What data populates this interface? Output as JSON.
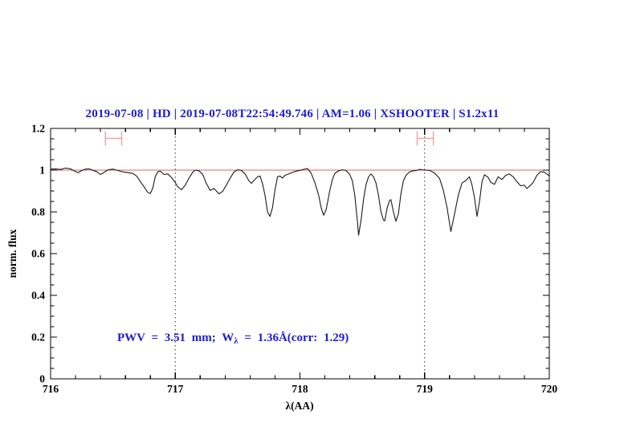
{
  "header": {
    "title": "2019-07-08 | HD | 2019-07-08T22:54:49.746 | AM=1.06 | XSHOOTER | S1.2x11",
    "color": "#1c1cd6"
  },
  "annotation": {
    "part1": "PWV = 3.51 mm; W",
    "lambda_sub": "λ",
    "part2": " = 1.36Å(corr: 1.29)",
    "color": "#1c1cd6"
  },
  "chart_data": {
    "type": "line",
    "title": "2019-07-08 | HD | 2019-07-08T22:54:49.746 | AM=1.06 | XSHOOTER | S1.2x11",
    "xlabel": "λ(AA)",
    "ylabel": "norm. flux",
    "xlim": [
      716,
      720
    ],
    "ylim": [
      0,
      1.2
    ],
    "grid": false,
    "x_tick_labels": [
      "716",
      "717",
      "718",
      "719",
      "720"
    ],
    "x_major_ticks": [
      716,
      717,
      718,
      719,
      720
    ],
    "x_minor_step": 0.2,
    "y_tick_labels": [
      "0",
      "0.2",
      "0.4",
      "0.6",
      "0.8",
      "1",
      "1.2"
    ],
    "y_major_ticks": [
      0,
      0.2,
      0.4,
      0.6,
      0.8,
      1.0,
      1.2
    ],
    "y_minor_step": 0.05,
    "reference_line": {
      "y": 1.0,
      "color": "#e85f5f"
    },
    "dotted_vlines": {
      "x": [
        717,
        719
      ],
      "color": "#3c3c3c"
    },
    "interval_markers": {
      "color": "#f2a0a0",
      "y": 1.152,
      "cap_half_height": 0.034,
      "items": [
        {
          "center": 716.505,
          "half_width": 0.065
        },
        {
          "center": 719.005,
          "half_width": 0.065
        }
      ]
    },
    "series": [
      {
        "name": "normalized-spectrum",
        "color": "#1a1a1a",
        "points": [
          [
            716.0,
            1.005
          ],
          [
            716.04,
            1.006
          ],
          [
            716.08,
            1.003
          ],
          [
            716.12,
            1.01
          ],
          [
            716.16,
            1.006
          ],
          [
            716.19,
            0.996
          ],
          [
            716.22,
            0.988
          ],
          [
            716.25,
            0.998
          ],
          [
            716.28,
            1.005
          ],
          [
            716.31,
            1.006
          ],
          [
            716.34,
            0.999
          ],
          [
            716.37,
            0.993
          ],
          [
            716.4,
            0.979
          ],
          [
            716.43,
            0.99
          ],
          [
            716.46,
            1.001
          ],
          [
            716.5,
            1.005
          ],
          [
            716.54,
            0.998
          ],
          [
            716.58,
            0.992
          ],
          [
            716.62,
            0.988
          ],
          [
            716.66,
            0.984
          ],
          [
            716.69,
            0.972
          ],
          [
            716.72,
            0.945
          ],
          [
            716.75,
            0.92
          ],
          [
            716.78,
            0.893
          ],
          [
            716.8,
            0.888
          ],
          [
            716.82,
            0.915
          ],
          [
            716.84,
            0.97
          ],
          [
            716.86,
            0.992
          ],
          [
            716.88,
            0.995
          ],
          [
            716.91,
            0.979
          ],
          [
            716.94,
            0.982
          ],
          [
            716.97,
            0.965
          ],
          [
            717.0,
            0.94
          ],
          [
            717.02,
            0.92
          ],
          [
            717.05,
            0.906
          ],
          [
            717.08,
            0.928
          ],
          [
            717.11,
            0.962
          ],
          [
            717.14,
            0.99
          ],
          [
            717.16,
            1.0
          ],
          [
            717.19,
            0.997
          ],
          [
            717.22,
            0.98
          ],
          [
            717.25,
            0.935
          ],
          [
            717.28,
            0.903
          ],
          [
            717.31,
            0.912
          ],
          [
            717.33,
            0.9
          ],
          [
            717.35,
            0.886
          ],
          [
            717.38,
            0.898
          ],
          [
            717.41,
            0.928
          ],
          [
            717.44,
            0.962
          ],
          [
            717.47,
            0.99
          ],
          [
            717.5,
            1.002
          ],
          [
            717.53,
            0.999
          ],
          [
            717.56,
            0.982
          ],
          [
            717.59,
            0.95
          ],
          [
            717.61,
            0.937
          ],
          [
            717.63,
            0.95
          ],
          [
            717.66,
            0.968
          ],
          [
            717.68,
            0.972
          ],
          [
            717.7,
            0.935
          ],
          [
            717.72,
            0.88
          ],
          [
            717.74,
            0.8
          ],
          [
            717.76,
            0.778
          ],
          [
            717.78,
            0.82
          ],
          [
            717.8,
            0.905
          ],
          [
            717.82,
            0.968
          ],
          [
            717.84,
            0.972
          ],
          [
            717.86,
            0.962
          ],
          [
            717.88,
            0.975
          ],
          [
            717.91,
            0.982
          ],
          [
            717.94,
            0.99
          ],
          [
            717.97,
            0.995
          ],
          [
            718.0,
            0.999
          ],
          [
            718.03,
            1.004
          ],
          [
            718.06,
            1.008
          ],
          [
            718.09,
            0.985
          ],
          [
            718.12,
            0.94
          ],
          [
            718.15,
            0.88
          ],
          [
            718.17,
            0.82
          ],
          [
            718.19,
            0.784
          ],
          [
            718.21,
            0.81
          ],
          [
            718.24,
            0.905
          ],
          [
            718.26,
            0.955
          ],
          [
            718.28,
            0.985
          ],
          [
            718.31,
            0.996
          ],
          [
            718.34,
            1.002
          ],
          [
            718.37,
            0.998
          ],
          [
            718.4,
            0.978
          ],
          [
            718.42,
            0.95
          ],
          [
            718.44,
            0.88
          ],
          [
            718.46,
            0.76
          ],
          [
            718.47,
            0.688
          ],
          [
            718.49,
            0.76
          ],
          [
            718.51,
            0.86
          ],
          [
            718.53,
            0.93
          ],
          [
            718.55,
            0.968
          ],
          [
            718.57,
            0.982
          ],
          [
            718.59,
            0.968
          ],
          [
            718.61,
            0.938
          ],
          [
            718.63,
            0.88
          ],
          [
            718.65,
            0.8
          ],
          [
            718.67,
            0.76
          ],
          [
            718.68,
            0.757
          ],
          [
            718.7,
            0.82
          ],
          [
            718.72,
            0.856
          ],
          [
            718.73,
            0.858
          ],
          [
            718.75,
            0.8
          ],
          [
            718.77,
            0.755
          ],
          [
            718.79,
            0.79
          ],
          [
            718.81,
            0.888
          ],
          [
            718.83,
            0.95
          ],
          [
            718.85,
            0.975
          ],
          [
            718.88,
            0.992
          ],
          [
            718.91,
            0.997
          ],
          [
            718.94,
            0.999
          ],
          [
            718.96,
            1.004
          ],
          [
            719.0,
            1.0
          ],
          [
            719.04,
            0.999
          ],
          [
            719.08,
            0.986
          ],
          [
            719.12,
            0.96
          ],
          [
            719.15,
            0.905
          ],
          [
            719.18,
            0.82
          ],
          [
            719.21,
            0.706
          ],
          [
            719.24,
            0.79
          ],
          [
            719.27,
            0.88
          ],
          [
            719.3,
            0.938
          ],
          [
            719.33,
            0.95
          ],
          [
            719.36,
            0.968
          ],
          [
            719.38,
            0.93
          ],
          [
            719.4,
            0.87
          ],
          [
            719.42,
            0.778
          ],
          [
            719.44,
            0.85
          ],
          [
            719.46,
            0.945
          ],
          [
            719.48,
            0.978
          ],
          [
            719.51,
            0.965
          ],
          [
            719.53,
            0.942
          ],
          [
            719.56,
            0.932
          ],
          [
            719.59,
            0.968
          ],
          [
            719.62,
            0.955
          ],
          [
            719.65,
            0.975
          ],
          [
            719.68,
            0.982
          ],
          [
            719.71,
            0.968
          ],
          [
            719.74,
            0.945
          ],
          [
            719.77,
            0.925
          ],
          [
            719.8,
            0.928
          ],
          [
            719.82,
            0.912
          ],
          [
            719.85,
            0.928
          ],
          [
            719.87,
            0.94
          ],
          [
            719.9,
            0.975
          ],
          [
            719.93,
            0.993
          ],
          [
            719.96,
            0.99
          ],
          [
            720.0,
            0.973
          ]
        ]
      }
    ]
  }
}
